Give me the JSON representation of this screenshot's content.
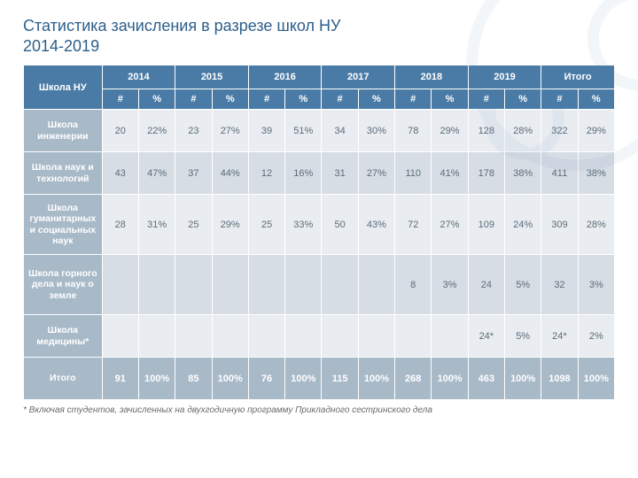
{
  "title_line1": "Статистика зачисления в разрезе школ НУ",
  "title_line2": "2014-2019",
  "header": {
    "corner": "Школа НУ",
    "years": [
      "2014",
      "2015",
      "2016",
      "2017",
      "2018",
      "2019"
    ],
    "total_label": "Итого",
    "count_symbol": "#",
    "percent_symbol": "%"
  },
  "rows": [
    {
      "label": "Школа инженерии",
      "band": "a",
      "cells": [
        "20",
        "22%",
        "23",
        "27%",
        "39",
        "51%",
        "34",
        "30%",
        "78",
        "29%",
        "128",
        "28%",
        "322",
        "29%"
      ]
    },
    {
      "label": "Школа наук и технологий",
      "band": "b",
      "cells": [
        "43",
        "47%",
        "37",
        "44%",
        "12",
        "16%",
        "31",
        "27%",
        "110",
        "41%",
        "178",
        "38%",
        "411",
        "38%"
      ]
    },
    {
      "label": "Школа гуманитарных и социальных наук",
      "band": "a",
      "tall": true,
      "cells": [
        "28",
        "31%",
        "25",
        "29%",
        "25",
        "33%",
        "50",
        "43%",
        "72",
        "27%",
        "109",
        "24%",
        "309",
        "28%"
      ]
    },
    {
      "label": "Школа горного дела и наук о земле",
      "band": "b",
      "tall": true,
      "cells": [
        "",
        "",
        "",
        "",
        "",
        "",
        "",
        "",
        "8",
        "3%",
        "24",
        "5%",
        "32",
        "3%"
      ]
    },
    {
      "label": "Школа медицины*",
      "band": "a",
      "cells": [
        "",
        "",
        "",
        "",
        "",
        "",
        "",
        "",
        "",
        "",
        "24*",
        "5%",
        "24*",
        "2%"
      ]
    },
    {
      "label": "Итого",
      "band": "total",
      "cells": [
        "91",
        "100%",
        "85",
        "100%",
        "76",
        "100%",
        "115",
        "100%",
        "268",
        "100%",
        "463",
        "100%",
        "1098",
        "100%"
      ]
    }
  ],
  "footnote": "* Включая студентов, зачисленных на двухгодичную программу Прикладного сестринского дела",
  "colors": {
    "title": "#2d5f8b",
    "header_bg": "#4a7ba6",
    "rowlabel_bg": "#a8b9c8",
    "band_a": "#e9edf1",
    "band_b": "#d6dde4",
    "cell_text": "#5c6b78"
  }
}
